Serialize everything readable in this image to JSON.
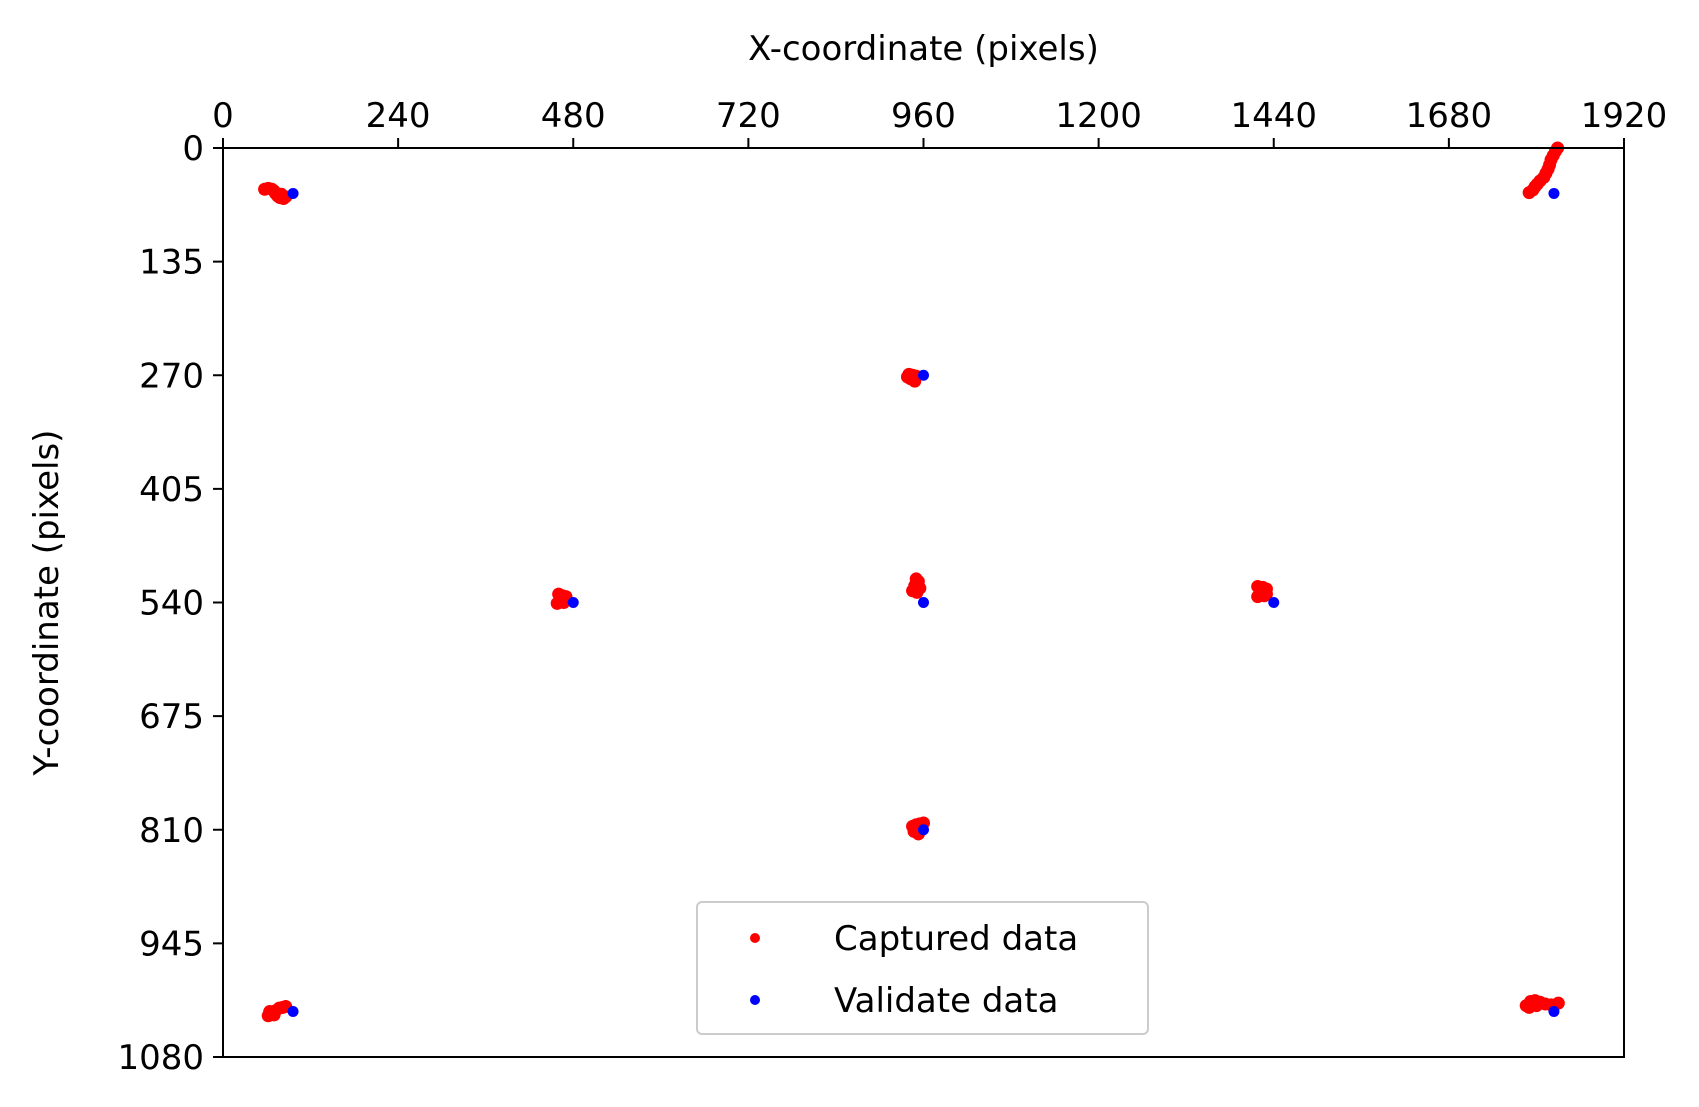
{
  "chart_data": {
    "type": "scatter",
    "title": "",
    "xlabel": "X-coordinate (pixels)",
    "ylabel": "Y-coordinate (pixels)",
    "xlim": [
      0,
      1920
    ],
    "ylim": [
      1080,
      0
    ],
    "x_ticks": [
      0,
      240,
      480,
      720,
      960,
      1200,
      1440,
      1680,
      1920
    ],
    "y_ticks": [
      0,
      135,
      270,
      405,
      540,
      675,
      810,
      945,
      1080
    ],
    "x_axis_position": "top",
    "y_axis_inverted": true,
    "grid": false,
    "legend_position": "bottom-center",
    "series": [
      {
        "name": "Captured data",
        "color": "#ff0000",
        "points": [
          [
            57,
            49
          ],
          [
            62,
            48
          ],
          [
            67,
            49
          ],
          [
            70,
            51
          ],
          [
            72,
            54
          ],
          [
            75,
            57
          ],
          [
            78,
            59
          ],
          [
            83,
            60
          ],
          [
            86,
            58
          ],
          [
            80,
            55
          ],
          [
            1790,
            53
          ],
          [
            1795,
            50
          ],
          [
            1798,
            46
          ],
          [
            1801,
            43
          ],
          [
            1805,
            39
          ],
          [
            1810,
            35
          ],
          [
            1813,
            30
          ],
          [
            1816,
            25
          ],
          [
            1818,
            20
          ],
          [
            1820,
            14
          ],
          [
            1823,
            9
          ],
          [
            1826,
            4
          ],
          [
            1829,
            0
          ],
          [
            940,
            269
          ],
          [
            945,
            270
          ],
          [
            950,
            271
          ],
          [
            942,
            274
          ],
          [
            948,
            277
          ],
          [
            938,
            272
          ],
          [
            460,
            530
          ],
          [
            465,
            532
          ],
          [
            470,
            533
          ],
          [
            463,
            538
          ],
          [
            458,
            541
          ],
          [
            467,
            540
          ],
          [
            462,
            536
          ],
          [
            950,
            512
          ],
          [
            953,
            515
          ],
          [
            948,
            520
          ],
          [
            945,
            526
          ],
          [
            951,
            528
          ],
          [
            955,
            523
          ],
          [
            1418,
            521
          ],
          [
            1425,
            522
          ],
          [
            1430,
            524
          ],
          [
            1422,
            529
          ],
          [
            1427,
            532
          ],
          [
            1418,
            533
          ],
          [
            1430,
            530
          ],
          [
            945,
            806
          ],
          [
            950,
            804
          ],
          [
            955,
            803
          ],
          [
            960,
            802
          ],
          [
            948,
            810
          ],
          [
            953,
            815
          ],
          [
            947,
            812
          ],
          [
            62,
            1031
          ],
          [
            67,
            1028
          ],
          [
            72,
            1025
          ],
          [
            77,
            1022
          ],
          [
            82,
            1021
          ],
          [
            86,
            1020
          ],
          [
            70,
            1030
          ],
          [
            64,
            1026
          ],
          [
            1786,
            1019
          ],
          [
            1792,
            1014
          ],
          [
            1798,
            1013
          ],
          [
            1805,
            1015
          ],
          [
            1812,
            1017
          ],
          [
            1820,
            1018
          ],
          [
            1830,
            1016
          ],
          [
            1790,
            1021
          ],
          [
            1800,
            1019
          ]
        ]
      },
      {
        "name": "Validate data",
        "color": "#0000ff",
        "points": [
          [
            96,
            54
          ],
          [
            1824,
            54
          ],
          [
            960,
            270
          ],
          [
            480,
            540
          ],
          [
            960,
            540
          ],
          [
            1440,
            540
          ],
          [
            960,
            810
          ],
          [
            96,
            1026
          ],
          [
            1824,
            1026
          ]
        ]
      }
    ]
  }
}
